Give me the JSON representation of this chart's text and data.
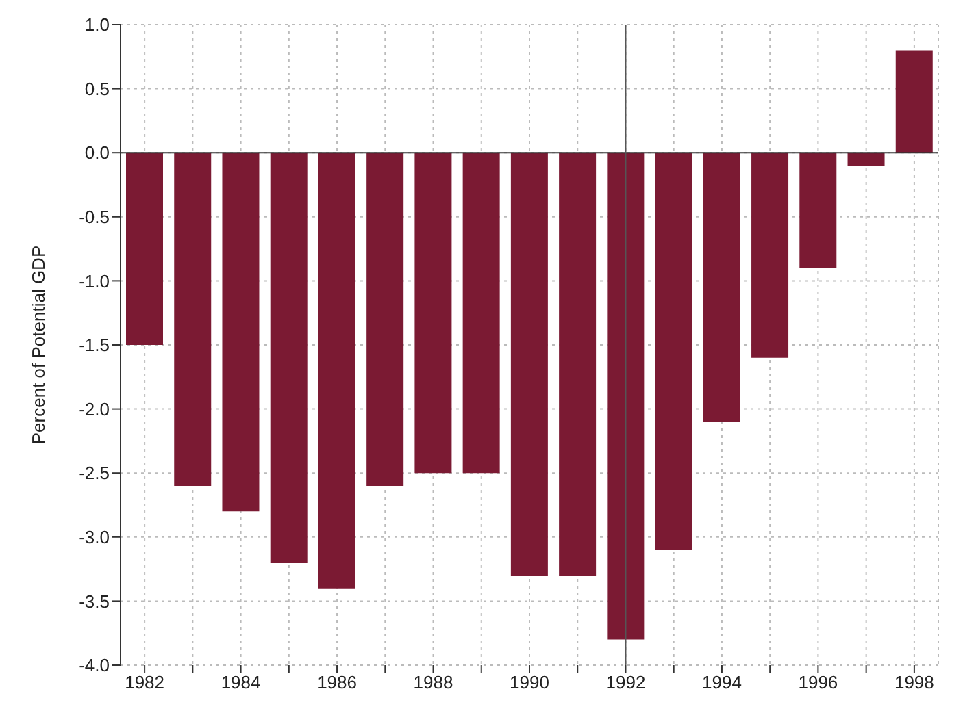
{
  "chart_data": {
    "type": "bar",
    "ylabel": "Percent of Potential GDP",
    "categories": [
      "1982",
      null,
      "1984",
      null,
      "1986",
      null,
      "1988",
      null,
      "1990",
      null,
      "1992",
      null,
      "1994",
      null,
      "1996",
      null,
      "1998"
    ],
    "values": [
      -1.5,
      -2.6,
      -2.8,
      -3.2,
      -3.4,
      -2.6,
      -2.5,
      -2.5,
      -3.3,
      -3.3,
      -3.8,
      -3.1,
      -2.1,
      -1.6,
      -0.9,
      -0.1,
      0.8
    ],
    "color": "#7b1a33",
    "ylim": [
      -4.0,
      1.0
    ],
    "yticks": [
      {
        "value": -4,
        "label": "-4.0"
      },
      {
        "value": -3.5,
        "label": "-3.5"
      },
      {
        "value": -3,
        "label": "-3.0"
      },
      {
        "value": -2.5,
        "label": "-2.5"
      },
      {
        "value": -2,
        "label": "-2.0"
      },
      {
        "value": -1.5,
        "label": "-1.5"
      },
      {
        "value": -1,
        "label": "-1.0"
      },
      {
        "value": -0.5,
        "label": "-0.5"
      },
      {
        "value": 0,
        "label": "0.0"
      },
      {
        "value": 0.5,
        "label": "0.5"
      },
      {
        "value": 1,
        "label": "1.0"
      }
    ],
    "grid": true,
    "ref_lines": [
      {
        "axis": "x",
        "value": "1992",
        "color": "#555555"
      }
    ]
  }
}
